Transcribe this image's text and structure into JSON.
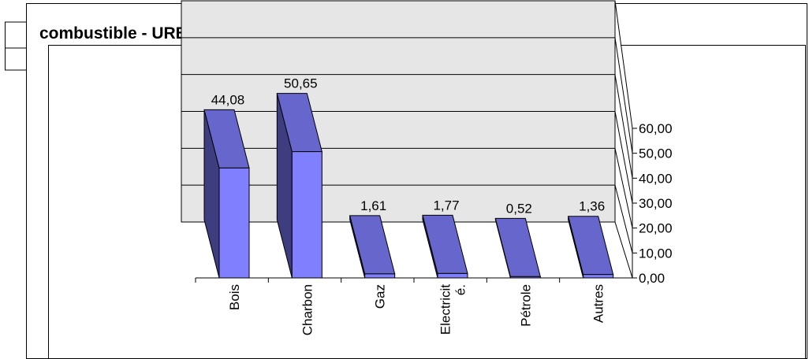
{
  "chart_data": {
    "type": "bar",
    "title": "combustible - URBAIN",
    "xlabel": "",
    "ylabel": "",
    "categories": [
      "Bois",
      "Charbon",
      "Gaz",
      "Electricité.",
      "Pétrole",
      "Autres"
    ],
    "category_lines": [
      [
        "Bois"
      ],
      [
        "Charbon"
      ],
      [
        "Gaz"
      ],
      [
        "Electricit",
        "é."
      ],
      [
        "Pétrole"
      ],
      [
        "Autres"
      ]
    ],
    "values": [
      44.08,
      50.65,
      1.61,
      1.77,
      0.52,
      1.36
    ],
    "value_labels": [
      "44,08",
      "50,65",
      "1,61",
      "1,77",
      "0,52",
      "1,36"
    ],
    "ylim": [
      0,
      60
    ],
    "yticks": [
      "0,00",
      "10,00",
      "20,00",
      "30,00",
      "40,00",
      "50,00",
      "60,00"
    ],
    "grid": true,
    "legend": "none",
    "colors": {
      "bar_front": "#8080ff",
      "bar_top": "#6666cc",
      "bar_side": "#3d3d80",
      "wall": "#e6e6e6"
    }
  }
}
